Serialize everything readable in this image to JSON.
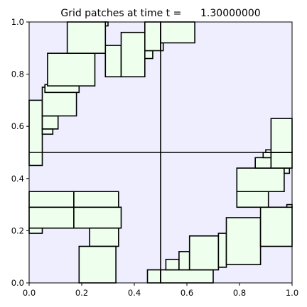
{
  "chart_data": {
    "type": "patches",
    "title": "Grid patches at time t =      1.30000000",
    "xlabel": "",
    "ylabel": "",
    "xlim": [
      0,
      1
    ],
    "ylim": [
      0,
      1
    ],
    "x_ticks": [
      0.0,
      0.2,
      0.4,
      0.6,
      0.8,
      1.0
    ],
    "y_ticks": [
      0.0,
      0.2,
      0.4,
      0.6,
      0.8,
      1.0
    ],
    "x_tick_labels": [
      "0.0",
      "0.2",
      "0.4",
      "0.6",
      "0.8",
      "1.0"
    ],
    "y_tick_labels": [
      "0.0",
      "0.2",
      "0.4",
      "0.6",
      "0.8",
      "1.0"
    ],
    "grid": false,
    "colors": {
      "domain_fill": "#eeeeff",
      "patch_fill": "#eeffee",
      "edge": "#000000"
    },
    "level1_lines": [
      {
        "x1": 0.5,
        "y1": 0.0,
        "x2": 0.5,
        "y2": 1.0
      },
      {
        "x1": 0.0,
        "y1": 0.5,
        "x2": 1.0,
        "y2": 0.5
      }
    ],
    "patches": [
      {
        "x0": 0.0,
        "x1": 0.05,
        "y0": 0.45,
        "y1": 0.7
      },
      {
        "x0": 0.05,
        "x1": 0.09,
        "y0": 0.57,
        "y1": 0.59
      },
      {
        "x0": 0.05,
        "x1": 0.11,
        "y0": 0.59,
        "y1": 0.64
      },
      {
        "x0": 0.05,
        "x1": 0.18,
        "y0": 0.64,
        "y1": 0.75
      },
      {
        "x0": 0.06,
        "x1": 0.19,
        "y0": 0.73,
        "y1": 0.76
      },
      {
        "x0": 0.07,
        "x1": 0.25,
        "y0": 0.755,
        "y1": 0.88
      },
      {
        "x0": 0.145,
        "x1": 0.29,
        "y0": 0.88,
        "y1": 1.0
      },
      {
        "x0": 0.29,
        "x1": 0.3,
        "y0": 0.985,
        "y1": 1.0
      },
      {
        "x0": 0.29,
        "x1": 0.35,
        "y0": 0.79,
        "y1": 0.91
      },
      {
        "x0": 0.35,
        "x1": 0.44,
        "y0": 0.79,
        "y1": 0.96
      },
      {
        "x0": 0.44,
        "x1": 0.47,
        "y0": 0.86,
        "y1": 0.89
      },
      {
        "x0": 0.44,
        "x1": 0.5,
        "y0": 0.89,
        "y1": 1.0
      },
      {
        "x0": 0.5,
        "x1": 0.51,
        "y0": 0.89,
        "y1": 0.92
      },
      {
        "x0": 0.5,
        "x1": 0.63,
        "y0": 0.92,
        "y1": 1.0
      },
      {
        "x0": 0.0,
        "x1": 0.05,
        "y0": 0.19,
        "y1": 0.21
      },
      {
        "x0": 0.0,
        "x1": 0.17,
        "y0": 0.21,
        "y1": 0.29
      },
      {
        "x0": 0.0,
        "x1": 0.17,
        "y0": 0.29,
        "y1": 0.35
      },
      {
        "x0": 0.17,
        "x1": 0.35,
        "y0": 0.21,
        "y1": 0.29
      },
      {
        "x0": 0.17,
        "x1": 0.34,
        "y0": 0.29,
        "y1": 0.35
      },
      {
        "x0": 0.23,
        "x1": 0.34,
        "y0": 0.14,
        "y1": 0.21
      },
      {
        "x0": 0.19,
        "x1": 0.33,
        "y0": 0.0,
        "y1": 0.14
      },
      {
        "x0": 0.45,
        "x1": 0.5,
        "y0": 0.0,
        "y1": 0.05
      },
      {
        "x0": 0.5,
        "x1": 0.7,
        "y0": 0.0,
        "y1": 0.05
      },
      {
        "x0": 0.52,
        "x1": 0.57,
        "y0": 0.05,
        "y1": 0.09
      },
      {
        "x0": 0.57,
        "x1": 0.61,
        "y0": 0.05,
        "y1": 0.12
      },
      {
        "x0": 0.61,
        "x1": 0.72,
        "y0": 0.05,
        "y1": 0.18
      },
      {
        "x0": 0.72,
        "x1": 0.75,
        "y0": 0.06,
        "y1": 0.19
      },
      {
        "x0": 0.75,
        "x1": 0.88,
        "y0": 0.07,
        "y1": 0.25
      },
      {
        "x0": 0.88,
        "x1": 1.0,
        "y0": 0.14,
        "y1": 0.29
      },
      {
        "x0": 0.98,
        "x1": 1.0,
        "y0": 0.29,
        "y1": 0.3
      },
      {
        "x0": 0.79,
        "x1": 0.91,
        "y0": 0.29,
        "y1": 0.35
      },
      {
        "x0": 0.79,
        "x1": 0.97,
        "y0": 0.35,
        "y1": 0.44
      },
      {
        "x0": 0.97,
        "x1": 0.99,
        "y0": 0.42,
        "y1": 0.44
      },
      {
        "x0": 0.86,
        "x1": 0.92,
        "y0": 0.44,
        "y1": 0.48
      },
      {
        "x0": 0.89,
        "x1": 0.92,
        "y0": 0.48,
        "y1": 0.5
      },
      {
        "x0": 0.92,
        "x1": 1.0,
        "y0": 0.44,
        "y1": 0.5
      },
      {
        "x0": 0.9,
        "x1": 0.92,
        "y0": 0.5,
        "y1": 0.51
      },
      {
        "x0": 0.92,
        "x1": 1.0,
        "y0": 0.5,
        "y1": 0.63
      }
    ]
  }
}
